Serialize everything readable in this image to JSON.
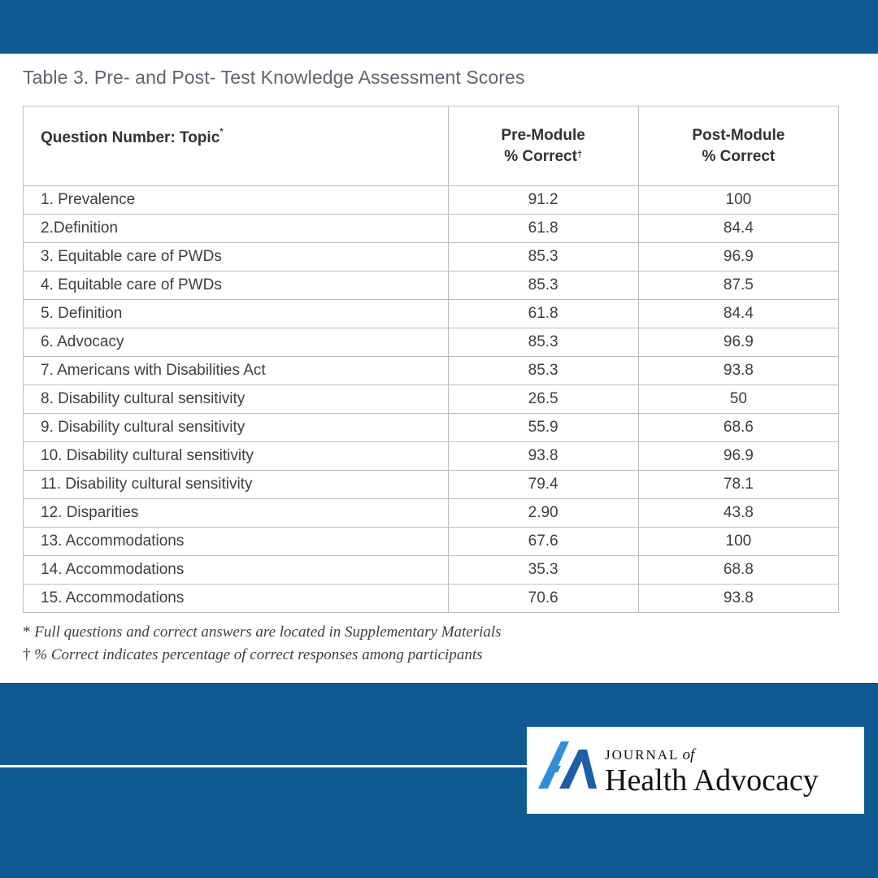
{
  "caption": "Table 3. Pre- and Post- Test Knowledge Assessment Scores",
  "table": {
    "headers": {
      "topic": "Question Number: Topic",
      "topic_mark": "*",
      "pre_line1": "Pre-Module",
      "pre_line2": "% Correct",
      "pre_mark": "†",
      "post_line1": "Post-Module",
      "post_line2": "% Correct"
    },
    "rows": [
      {
        "topic": "1. Prevalence",
        "pre": "91.2",
        "post": "100"
      },
      {
        "topic": "2.Definition",
        "pre": "61.8",
        "post": "84.4"
      },
      {
        "topic": "3. Equitable care of PWDs",
        "pre": "85.3",
        "post": "96.9"
      },
      {
        "topic": "4. Equitable care of PWDs",
        "pre": "85.3",
        "post": "87.5"
      },
      {
        "topic": "5. Definition",
        "pre": "61.8",
        "post": "84.4"
      },
      {
        "topic": "6. Advocacy",
        "pre": "85.3",
        "post": "96.9"
      },
      {
        "topic": "7. Americans with Disabilities Act",
        "pre": "85.3",
        "post": "93.8"
      },
      {
        "topic": "8. Disability cultural sensitivity",
        "pre": "26.5",
        "post": "50"
      },
      {
        "topic": "9. Disability cultural sensitivity",
        "pre": "55.9",
        "post": "68.6"
      },
      {
        "topic": "10. Disability cultural sensitivity",
        "pre": "93.8",
        "post": "96.9"
      },
      {
        "topic": "11. Disability cultural sensitivity",
        "pre": "79.4",
        "post": "78.1"
      },
      {
        "topic": "12. Disparities",
        "pre": "2.90",
        "post": "43.8"
      },
      {
        "topic": "13. Accommodations",
        "pre": "67.6",
        "post": "100"
      },
      {
        "topic": "14. Accommodations",
        "pre": "35.3",
        "post": "68.8"
      },
      {
        "topic": "15. Accommodations",
        "pre": "70.6",
        "post": "93.8"
      }
    ]
  },
  "notes": {
    "note1_symbol": "*",
    "note1_text": "Full questions and correct answers are located in Supplementary Materials",
    "note2_symbol": "†",
    "note2_text": "% Correct indicates percentage of correct responses among participants"
  },
  "logo": {
    "journal_word": "JOURNAL",
    "of_word": "of",
    "title": "Health Advocacy"
  },
  "colors": {
    "brand_blue": "#0e5a93",
    "logo_light_blue": "#2f8fd6",
    "logo_dark_blue": "#1b5fa6"
  },
  "icons": {
    "logo_mark": "journal-logo-icon"
  }
}
